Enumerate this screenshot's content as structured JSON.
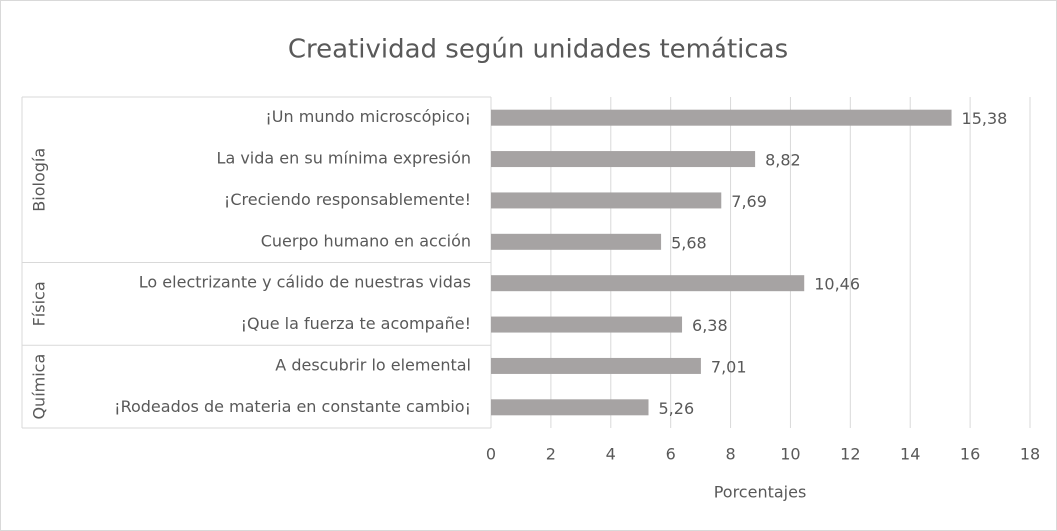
{
  "chart_data": {
    "type": "bar",
    "orientation": "horizontal",
    "title": "Creatividad según unidades temáticas",
    "x_label": "Porcentajes",
    "color": "#a6a3a3",
    "xlim": [
      0,
      18
    ],
    "xticks": [
      0,
      2,
      4,
      6,
      8,
      10,
      12,
      14,
      16,
      18
    ],
    "grid": true,
    "groups": [
      {
        "name": "Biología",
        "categories": [
          "¡Un mundo microscópico¡",
          "La vida en su mínima expresión",
          "¡Creciendo responsablemente!",
          "Cuerpo humano en acción"
        ],
        "values": [
          15.38,
          8.82,
          7.69,
          5.68
        ],
        "value_labels": [
          "15,38",
          "8,82",
          "7,69",
          "5,68"
        ]
      },
      {
        "name": "Física",
        "categories": [
          "Lo electrizante y cálido de nuestras vidas",
          "¡Que la fuerza te acompañe!"
        ],
        "values": [
          10.46,
          6.38
        ],
        "value_labels": [
          "10,46",
          "6,38"
        ]
      },
      {
        "name": "Química",
        "categories": [
          "A descubrir lo elemental",
          "¡Rodeados de materia en constante cambio¡"
        ],
        "values": [
          7.01,
          5.26
        ],
        "value_labels": [
          "7,01",
          "5,26"
        ]
      }
    ]
  }
}
